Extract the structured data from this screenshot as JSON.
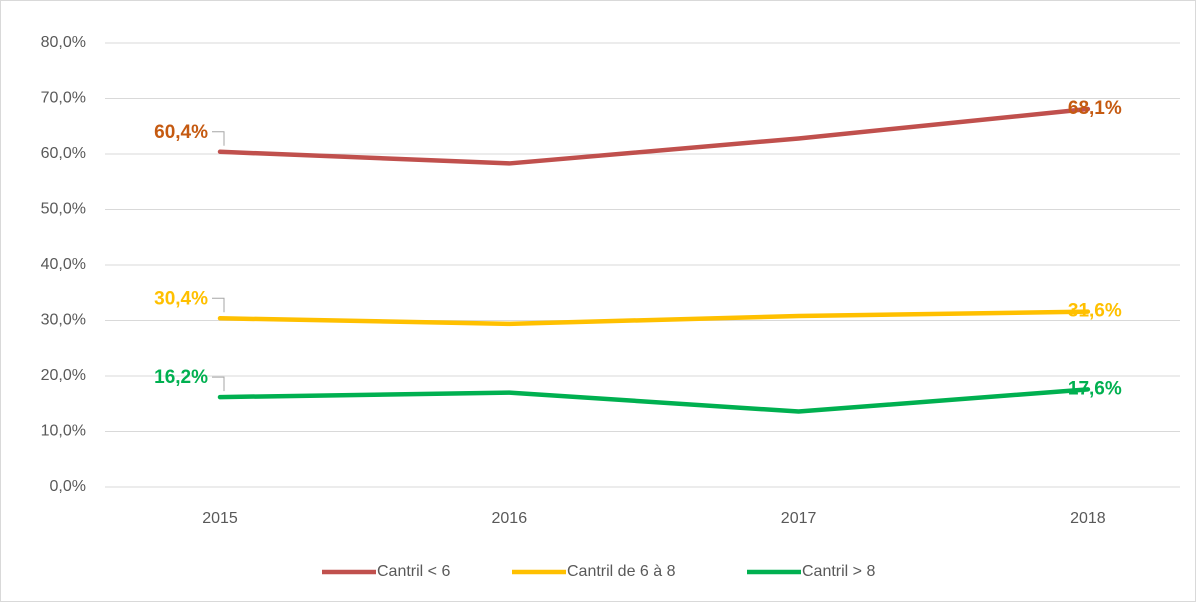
{
  "chart_data": {
    "type": "line",
    "categories": [
      "2015",
      "2016",
      "2017",
      "2018"
    ],
    "series": [
      {
        "name": "Cantril < 6",
        "color": "#c0504d",
        "label_color": "#c55a11",
        "values": [
          60.4,
          58.3,
          62.8,
          68.1
        ],
        "value_labels": [
          "60,4%",
          null,
          null,
          "68,1%"
        ]
      },
      {
        "name": "Cantril de 6 à 8",
        "color": "#ffc000",
        "label_color": "#ffc000",
        "values": [
          30.4,
          29.4,
          30.8,
          31.6
        ],
        "value_labels": [
          "30,4%",
          null,
          null,
          "31,6%"
        ]
      },
      {
        "name": "Cantril > 8",
        "color": "#00b050",
        "label_color": "#00b050",
        "values": [
          16.2,
          17.0,
          13.6,
          17.6
        ],
        "value_labels": [
          "16,2%",
          null,
          null,
          "17,6%"
        ]
      }
    ],
    "ylim": [
      0,
      80
    ],
    "yticks": [
      {
        "value": 0,
        "label": "0,0%"
      },
      {
        "value": 10,
        "label": "10,0%"
      },
      {
        "value": 20,
        "label": "20,0%"
      },
      {
        "value": 30,
        "label": "30,0%"
      },
      {
        "value": 40,
        "label": "40,0%"
      },
      {
        "value": 50,
        "label": "50,0%"
      },
      {
        "value": 60,
        "label": "60,0%"
      },
      {
        "value": 70,
        "label": "70,0%"
      },
      {
        "value": 80,
        "label": "80,0%"
      }
    ],
    "grid": true,
    "legend": "bottom"
  }
}
